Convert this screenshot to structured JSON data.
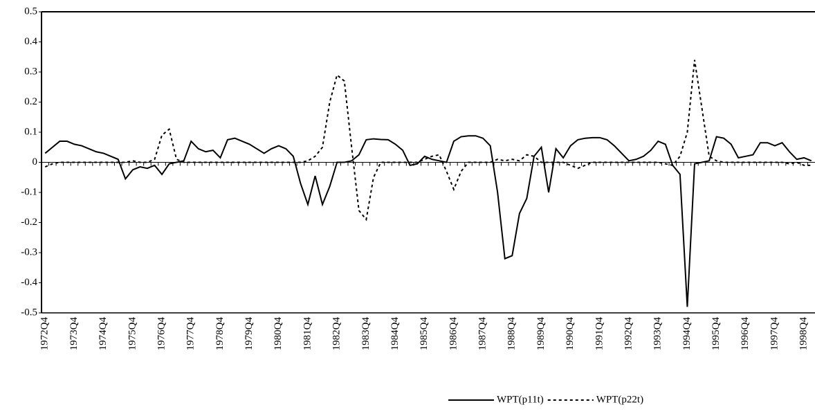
{
  "chart_data": {
    "type": "line",
    "categories": [
      "1972Q4",
      null,
      null,
      null,
      "1973Q4",
      null,
      null,
      null,
      "1974Q4",
      null,
      null,
      null,
      "1975Q4",
      null,
      null,
      null,
      "1976Q4",
      null,
      null,
      null,
      "1977Q4",
      null,
      null,
      null,
      "1978Q4",
      null,
      null,
      null,
      "1979Q4",
      null,
      null,
      null,
      "1980Q4",
      null,
      null,
      null,
      "1981Q4",
      null,
      null,
      null,
      "1982Q4",
      null,
      null,
      null,
      "1983Q4",
      null,
      null,
      null,
      "1984Q4",
      null,
      null,
      null,
      "1985Q4",
      null,
      null,
      null,
      "1986Q4",
      null,
      null,
      null,
      "1987Q4",
      null,
      null,
      null,
      "1988Q4",
      null,
      null,
      null,
      "1989Q4",
      null,
      null,
      null,
      "1990Q4",
      null,
      null,
      null,
      "1991Q4",
      null,
      null,
      null,
      "1992Q4",
      null,
      null,
      null,
      "1993Q4",
      null,
      null,
      null,
      "1994Q4",
      null,
      null,
      null,
      "1995Q4",
      null,
      null,
      null,
      "1996Q4",
      null,
      null,
      null,
      "1997Q4",
      null,
      null,
      null,
      "1998Q4",
      null
    ],
    "series": [
      {
        "name": "WPT(p11t)",
        "color": "#000000",
        "line_style": "solid",
        "values": [
          0.03,
          0.05,
          0.07,
          0.07,
          0.06,
          0.055,
          0.045,
          0.035,
          0.03,
          0.02,
          0.01,
          -0.055,
          -0.025,
          -0.015,
          -0.02,
          -0.01,
          -0.04,
          -0.005,
          0,
          0.005,
          0.07,
          0.045,
          0.035,
          0.04,
          0.015,
          0.075,
          0.08,
          0.07,
          0.06,
          0.045,
          0.03,
          0.045,
          0.055,
          0.045,
          0.02,
          -0.07,
          -0.14,
          -0.045,
          -0.14,
          -0.08,
          0,
          0,
          0.005,
          0.025,
          0.075,
          0.078,
          0.076,
          0.075,
          0.06,
          0.04,
          -0.01,
          -0.005,
          0.02,
          0.01,
          0.005,
          0,
          0.07,
          0.085,
          0.088,
          0.088,
          0.08,
          0.055,
          -0.1,
          -0.32,
          -0.31,
          -0.17,
          -0.12,
          0.02,
          0.05,
          -0.1,
          0.045,
          0.015,
          0.055,
          0.075,
          0.08,
          0.082,
          0.082,
          0.075,
          0.055,
          0.03,
          0.005,
          0.01,
          0.02,
          0.04,
          0.07,
          0.06,
          -0.01,
          -0.04,
          -0.48,
          -0.005,
          0,
          0.005,
          0.085,
          0.08,
          0.06,
          0.015,
          0.02,
          0.025,
          0.065,
          0.065,
          0.055,
          0.065,
          0.035,
          0.01,
          0.015,
          0.005
        ]
      },
      {
        "name": "WPT(p22t)",
        "color": "#000000",
        "line_style": "dashed",
        "values": [
          -0.015,
          -0.005,
          0,
          0,
          0,
          0,
          0,
          0,
          0,
          0,
          0,
          0,
          0.005,
          0,
          0,
          0.01,
          0.09,
          0.11,
          0.01,
          0,
          0,
          0,
          0,
          0,
          0,
          0,
          0,
          0,
          0,
          0,
          0,
          0,
          0,
          0,
          0,
          0,
          0.005,
          0.02,
          0.05,
          0.2,
          0.29,
          0.27,
          0.05,
          -0.16,
          -0.19,
          -0.05,
          0,
          0,
          0,
          0,
          0,
          0,
          0.01,
          0.02,
          0.025,
          -0.03,
          -0.09,
          -0.03,
          0,
          0,
          0,
          0,
          0.01,
          0.005,
          0.01,
          0.005,
          0.025,
          0.02,
          0,
          0,
          0,
          0,
          -0.01,
          -0.02,
          -0.01,
          0,
          0,
          0,
          0,
          0,
          0,
          0,
          0,
          0,
          0,
          -0.005,
          -0.01,
          0.02,
          0.1,
          0.34,
          0.18,
          0.02,
          0.005,
          0,
          0,
          0,
          0,
          0,
          0,
          0,
          0,
          0,
          -0.005,
          0,
          -0.01,
          -0.01
        ]
      }
    ],
    "ylim": [
      -0.5,
      0.5
    ],
    "yticks": [
      -0.5,
      -0.4,
      -0.3,
      -0.2,
      -0.1,
      0,
      0.1,
      0.2,
      0.3,
      0.4,
      0.5
    ],
    "grid": false
  }
}
